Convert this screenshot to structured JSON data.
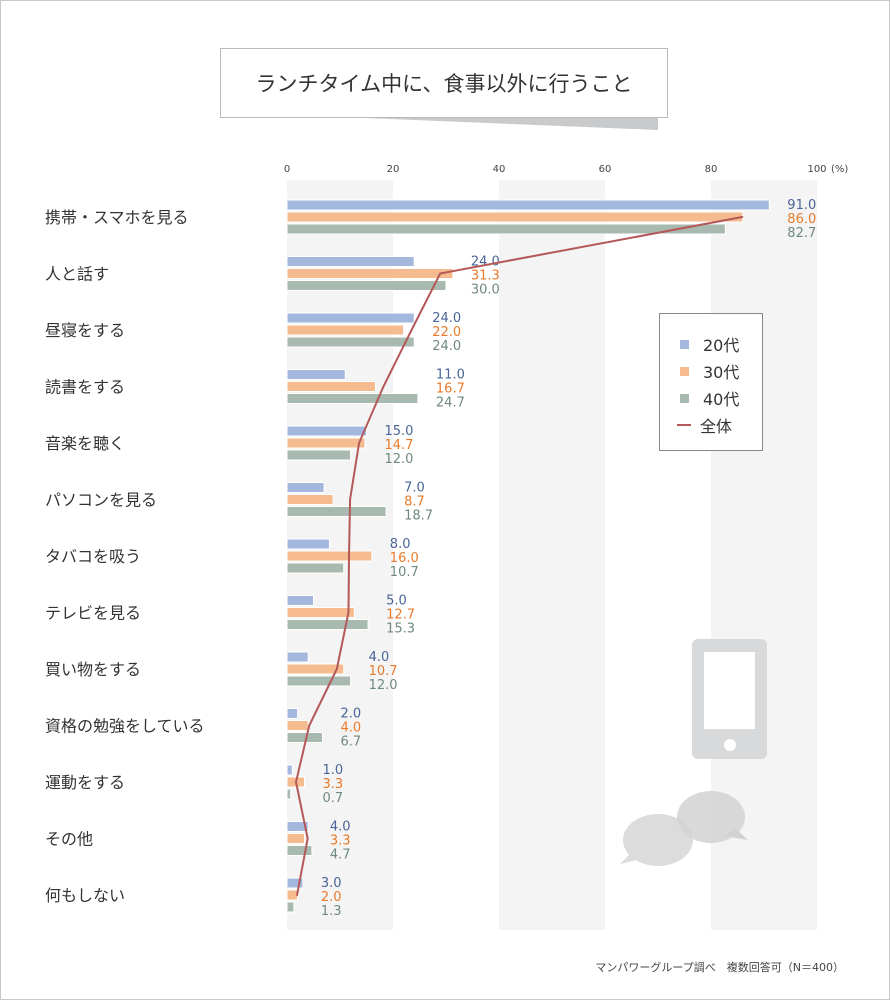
{
  "title": "ランチタイム中に、食事以外に行うこと",
  "footer": "マンパワーグループ調べ　複数回答可（N＝400）",
  "colors": {
    "20s": "#a3b8dc",
    "30s": "#f5bb8e",
    "40s": "#a8bab0",
    "all": "#b5585a",
    "label20": "#4a6496",
    "label30": "#e87a2a",
    "label40": "#6f8a7c"
  },
  "decorations": [
    "smartphone-icon",
    "chat-bubbles-icon"
  ],
  "chart_data": {
    "type": "bar",
    "orientation": "horizontal",
    "categories": [
      "携帯・スマホを見る",
      "人と話す",
      "昼寝をする",
      "読書をする",
      "音楽を聴く",
      "パソコンを見る",
      "タバコを吸う",
      "テレビを見る",
      "買い物をする",
      "資格の勉強をしている",
      "運動をする",
      "その他",
      "何もしない"
    ],
    "series": [
      {
        "name": "20代",
        "type": "bar",
        "values": [
          91.0,
          24.0,
          24.0,
          11.0,
          15.0,
          7.0,
          8.0,
          5.0,
          4.0,
          2.0,
          1.0,
          4.0,
          3.0
        ],
        "labels": [
          "91.0",
          "24.0",
          "24.0",
          "11.0",
          "15.0",
          "7.0",
          "8.0",
          "5.0",
          "4.0",
          "2.0",
          "1.0",
          "4.0",
          "3.0"
        ]
      },
      {
        "name": "30代",
        "type": "bar",
        "values": [
          86.0,
          31.3,
          22.0,
          16.7,
          14.7,
          8.7,
          16.0,
          12.7,
          10.7,
          4.0,
          3.3,
          3.3,
          2.0
        ],
        "labels": [
          "86.0",
          "31.3",
          "22.0",
          "16.7",
          "14.7",
          "8.7",
          "16.0",
          "12.7",
          "10.7",
          "4.0",
          "3.3",
          "3.3",
          "2.0"
        ]
      },
      {
        "name": "40代",
        "type": "bar",
        "values": [
          82.7,
          30.0,
          24.0,
          24.7,
          12.0,
          18.7,
          10.7,
          15.3,
          12.0,
          6.7,
          0.7,
          4.7,
          1.3
        ],
        "labels": [
          "82.7",
          "30.0",
          "24.0",
          "24.7",
          "12.0",
          "18.7",
          "10.7",
          "15.3",
          "12.0",
          "6.7",
          "0.7",
          "4.7",
          "1.3"
        ]
      },
      {
        "name": "全体",
        "type": "line",
        "values": [
          85.9,
          28.9,
          23.5,
          18.2,
          13.6,
          11.9,
          11.7,
          11.6,
          9.4,
          4.2,
          1.7,
          3.9,
          1.9
        ]
      }
    ],
    "xticks": [
      "0",
      "20",
      "40",
      "60",
      "80",
      "100"
    ],
    "xunit": "(%)",
    "xlim": [
      0,
      100
    ],
    "grid": "alternating bands",
    "legend": "right"
  }
}
